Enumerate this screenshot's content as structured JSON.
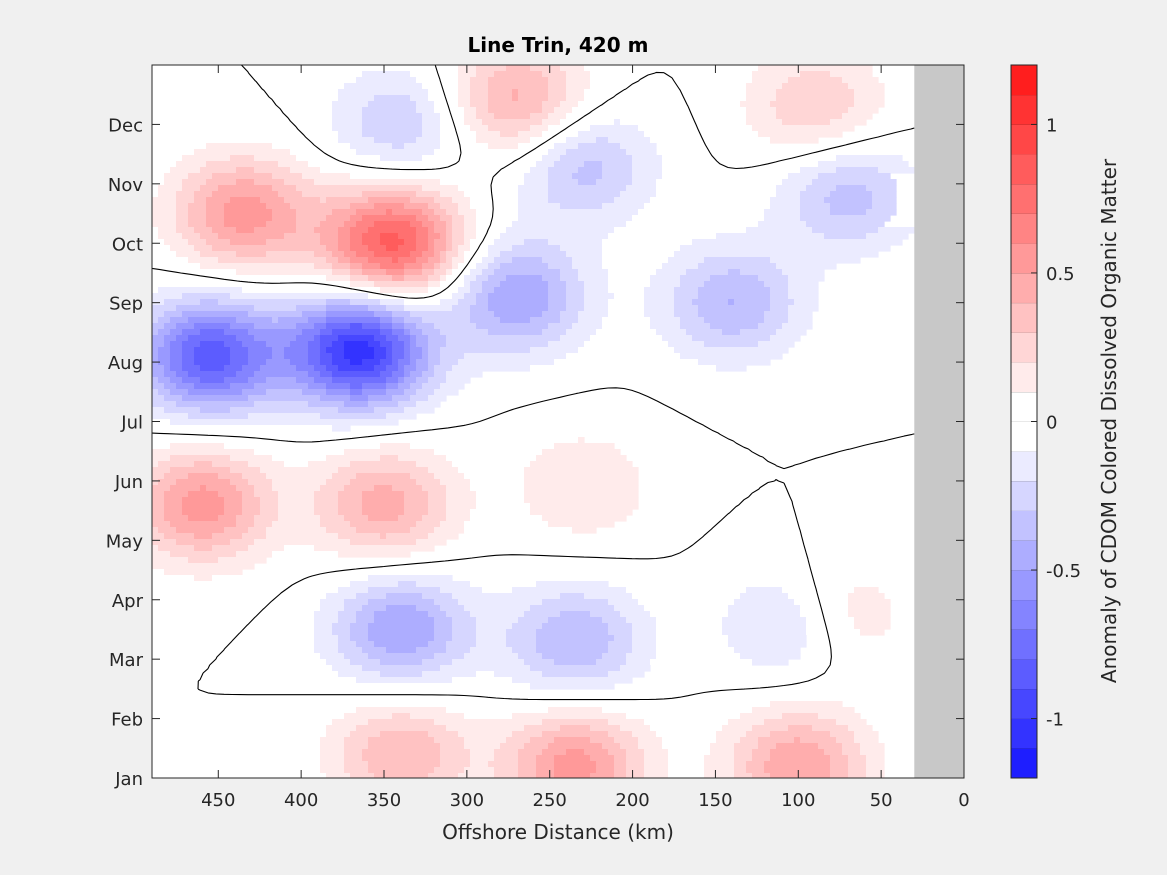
{
  "chart_data": {
    "type": "heatmap",
    "subtype": "filled-contour",
    "title": "Line Trin, 420 m",
    "xlabel": "Offshore Distance (km)",
    "x_reversed": true,
    "xlim": [
      0,
      490
    ],
    "xticks": [
      450,
      400,
      350,
      300,
      250,
      200,
      150,
      100,
      50,
      0
    ],
    "xtick_labels": [
      "450",
      "400",
      "350",
      "300",
      "250",
      "200",
      "150",
      "100",
      "50",
      "0"
    ],
    "ylabel": "",
    "ylim": [
      1,
      13
    ],
    "ytick_labels": [
      "Jan",
      "Feb",
      "Mar",
      "Apr",
      "May",
      "Jun",
      "Jul",
      "Aug",
      "Sep",
      "Oct",
      "Nov",
      "Dec"
    ],
    "no_data_region_km": [
      0,
      30
    ],
    "no_data_color": "#c8c8c8",
    "zero_contour_color": "#000000",
    "colorbar": {
      "label": "Anomaly of CDOM Colored Dissolved Organic Matter",
      "clim": [
        -1.2,
        1.2
      ],
      "level_step": 0.1,
      "ticks": [
        -1,
        -0.5,
        0,
        0.5,
        1
      ],
      "tick_labels": [
        "-1",
        "-0.5",
        "0",
        "0.5",
        "1"
      ],
      "colors": {
        "negative_max": "#0a0aff",
        "zero": "#ffffff",
        "positive_max": "#ff0a0a"
      }
    },
    "anomaly_features": [
      {
        "label": "negative",
        "x_km": 365,
        "month": 8.2,
        "value": -1.05
      },
      {
        "label": "negative",
        "x_km": 455,
        "month": 8.1,
        "value": -0.85
      },
      {
        "label": "negative",
        "x_km": 270,
        "month": 9.1,
        "value": -0.5
      },
      {
        "label": "negative",
        "x_km": 230,
        "month": 11.3,
        "value": -0.35
      },
      {
        "label": "negative",
        "x_km": 140,
        "month": 9.0,
        "value": -0.4
      },
      {
        "label": "negative",
        "x_km": 70,
        "month": 10.8,
        "value": -0.35
      },
      {
        "label": "negative",
        "x_km": 340,
        "month": 3.5,
        "value": -0.5
      },
      {
        "label": "negative",
        "x_km": 235,
        "month": 3.3,
        "value": -0.4
      },
      {
        "label": "negative",
        "x_km": 100,
        "month": 3.6,
        "value": -0.4
      },
      {
        "label": "negative",
        "x_km": 340,
        "month": 12.0,
        "value": -0.3
      },
      {
        "label": "positive",
        "x_km": 345,
        "month": 10.0,
        "value": 0.85
      },
      {
        "label": "positive",
        "x_km": 435,
        "month": 10.5,
        "value": 0.55
      },
      {
        "label": "positive",
        "x_km": 270,
        "month": 12.4,
        "value": 0.45
      },
      {
        "label": "positive",
        "x_km": 90,
        "month": 12.3,
        "value": 0.3
      },
      {
        "label": "positive",
        "x_km": 460,
        "month": 5.6,
        "value": 0.55
      },
      {
        "label": "positive",
        "x_km": 350,
        "month": 5.6,
        "value": 0.45
      },
      {
        "label": "positive",
        "x_km": 235,
        "month": 1.2,
        "value": 0.55
      },
      {
        "label": "positive",
        "x_km": 100,
        "month": 1.2,
        "value": 0.5
      },
      {
        "label": "positive",
        "x_km": 340,
        "month": 1.4,
        "value": 0.4
      },
      {
        "label": "positive",
        "x_km": 230,
        "month": 5.9,
        "value": 0.2
      },
      {
        "label": "positive",
        "x_km": 80,
        "month": 3.7,
        "value": 0.35
      }
    ]
  }
}
